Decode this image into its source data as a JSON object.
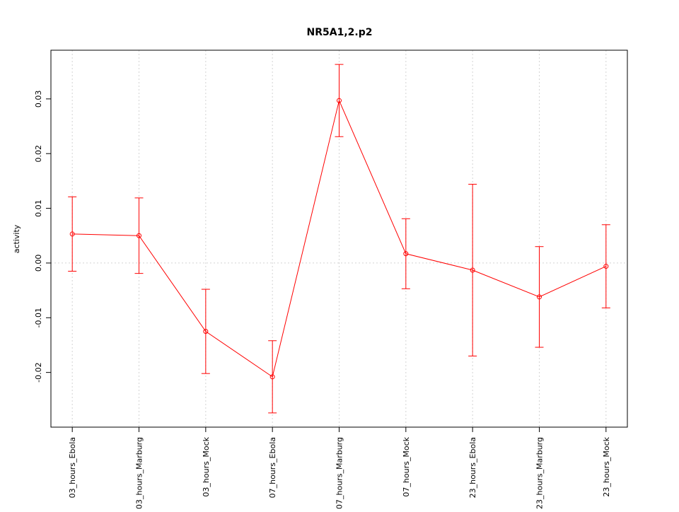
{
  "chart_data": {
    "type": "line",
    "title": "NR5A1,2.p2",
    "ylabel": "activity",
    "categories": [
      "03_hours_Ebola",
      "03_hours_Marburg",
      "03_hours_Mock",
      "07_hours_Ebola",
      "07_hours_Marburg",
      "07_hours_Mock",
      "23_hours_Ebola",
      "23_hours_Marburg",
      "23_hours_Mock"
    ],
    "series": [
      {
        "color": "#ff0000",
        "values": [
          0.0053,
          0.005,
          -0.0125,
          -0.0208,
          0.0297,
          0.0017,
          -0.0013,
          -0.0062,
          -0.0006
        ],
        "errors": [
          0.0068,
          0.0069,
          0.0077,
          0.0066,
          0.0066,
          0.0064,
          0.0157,
          0.0092,
          0.0076
        ]
      }
    ],
    "ylim": [
      -0.03,
      0.0389
    ],
    "yticks": [
      -0.02,
      -0.01,
      {
        "value": 0,
        "label": "0.00"
      },
      0.01,
      0.02,
      0.03
    ],
    "hline": 0,
    "grid": true
  }
}
